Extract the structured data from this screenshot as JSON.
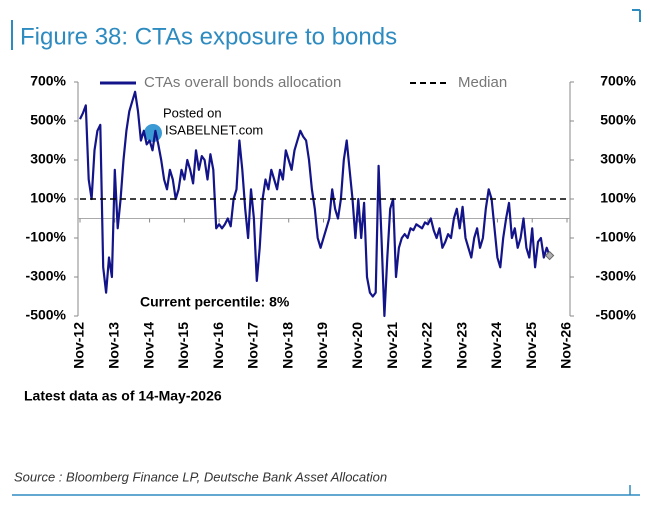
{
  "chart_data": {
    "type": "line",
    "title": "Figure 38: CTAs exposure to bonds",
    "annotations": {
      "percentile": "Current percentile: 8%",
      "latest": "Latest data as of 14-May-2026",
      "source": "Source : Bloomberg Finance LP, Deutsche Bank Asset Allocation",
      "watermark_top": "Posted on",
      "watermark_bottom": "ISABELNET.com"
    },
    "x": [
      "Nov-12",
      "Dec-12",
      "Jan-13",
      "Feb-13",
      "Mar-13",
      "Apr-13",
      "May-13",
      "Jun-13",
      "Jul-13",
      "Aug-13",
      "Sep-13",
      "Oct-13",
      "Nov-13",
      "Dec-13",
      "Jan-14",
      "Feb-14",
      "Mar-14",
      "Apr-14",
      "May-14",
      "Jun-14",
      "Jul-14",
      "Aug-14",
      "Sep-14",
      "Oct-14",
      "Nov-14",
      "Dec-14",
      "Jan-15",
      "Feb-15",
      "Mar-15",
      "Apr-15",
      "May-15",
      "Jun-15",
      "Jul-15",
      "Aug-15",
      "Sep-15",
      "Oct-15",
      "Nov-15",
      "Dec-15",
      "Jan-16",
      "Feb-16",
      "Mar-16",
      "Apr-16",
      "May-16",
      "Jun-16",
      "Jul-16",
      "Aug-16",
      "Sep-16",
      "Oct-16",
      "Nov-16",
      "Dec-16",
      "Jan-17",
      "Feb-17",
      "Mar-17",
      "Apr-17",
      "May-17",
      "Jun-17",
      "Jul-17",
      "Aug-17",
      "Sep-17",
      "Oct-17",
      "Nov-17",
      "Dec-17",
      "Jan-18",
      "Feb-18",
      "Mar-18",
      "Apr-18",
      "May-18",
      "Jun-18",
      "Jul-18",
      "Aug-18",
      "Sep-18",
      "Oct-18",
      "Nov-18",
      "Dec-18",
      "Jan-19",
      "Feb-19",
      "Mar-19",
      "Apr-19",
      "May-19",
      "Jun-19",
      "Jul-19",
      "Aug-19",
      "Sep-19",
      "Oct-19",
      "Nov-19",
      "Dec-19",
      "Jan-20",
      "Feb-20",
      "Mar-20",
      "Apr-20",
      "May-20",
      "Jun-20",
      "Jul-20",
      "Aug-20",
      "Sep-20",
      "Oct-20",
      "Nov-20",
      "Dec-20",
      "Jan-21",
      "Feb-21",
      "Mar-21",
      "Apr-21",
      "May-21",
      "Jun-21",
      "Jul-21",
      "Aug-21",
      "Sep-21",
      "Oct-21",
      "Nov-21",
      "Dec-21",
      "Jan-22",
      "Feb-22",
      "Mar-22",
      "Apr-22",
      "May-22",
      "Jun-22",
      "Jul-22",
      "Aug-22",
      "Sep-22",
      "Oct-22",
      "Nov-22",
      "Dec-22",
      "Jan-23",
      "Feb-23",
      "Mar-23",
      "Apr-23",
      "May-23",
      "Jun-23",
      "Jul-23",
      "Aug-23",
      "Sep-23",
      "Oct-23",
      "Nov-23",
      "Dec-23",
      "Jan-24",
      "Feb-24",
      "Mar-24",
      "Apr-24",
      "May-24",
      "Jun-24",
      "Jul-24",
      "Aug-24",
      "Sep-24",
      "Oct-24",
      "Nov-24",
      "Dec-24",
      "Jan-25",
      "Feb-25",
      "Mar-25",
      "Apr-25",
      "May-25",
      "Jun-25",
      "Jul-25",
      "Aug-25",
      "Sep-25",
      "Oct-25",
      "Nov-25",
      "Dec-25",
      "Jan-26",
      "Feb-26",
      "Mar-26",
      "Apr-26",
      "May-26",
      "Jun-26",
      "Jul-26",
      "Aug-26",
      "Sep-26",
      "Oct-26",
      "Nov-26"
    ],
    "x_label_every": 12,
    "series": [
      {
        "name": "CTAs overall bonds allocation",
        "color": "#14148a",
        "values": [
          510,
          540,
          580,
          200,
          100,
          350,
          450,
          480,
          -250,
          -380,
          -200,
          -300,
          250,
          -50,
          100,
          300,
          450,
          550,
          600,
          650,
          550,
          400,
          450,
          380,
          400,
          350,
          450,
          380,
          300,
          200,
          150,
          250,
          200,
          100,
          150,
          250,
          200,
          300,
          250,
          180,
          350,
          250,
          320,
          300,
          200,
          330,
          250,
          -50,
          -30,
          -50,
          -30,
          0,
          -40,
          100,
          150,
          400,
          250,
          50,
          -100,
          150,
          0,
          -320,
          -150,
          100,
          200,
          150,
          250,
          200,
          150,
          250,
          200,
          350,
          300,
          250,
          350,
          400,
          450,
          420,
          400,
          300,
          150,
          50,
          -100,
          -150,
          -100,
          -50,
          0,
          150,
          50,
          0,
          100,
          300,
          400,
          250,
          100,
          -100,
          100,
          -100,
          80,
          -300,
          -380,
          -400,
          -380,
          270,
          -100,
          -500,
          -200,
          50,
          100,
          -300,
          -150,
          -100,
          -80,
          -100,
          -50,
          -60,
          -30,
          -40,
          -50,
          -20,
          -30,
          0,
          -60,
          -100,
          -50,
          -150,
          -120,
          -80,
          -100,
          0,
          50,
          -50,
          60,
          -100,
          -150,
          -200,
          -100,
          -50,
          -150,
          -100,
          50,
          150,
          100,
          -50,
          -200,
          -250,
          -100,
          0,
          80,
          -100,
          -50,
          -150,
          -100,
          0,
          -150,
          -200,
          -50,
          -250,
          -120,
          -100,
          -200,
          -150,
          -190,
          null,
          null,
          null,
          null,
          null,
          null
        ]
      },
      {
        "name": "Median",
        "color": "#000000",
        "dashed": true,
        "value": 100
      }
    ],
    "last_point_marker": "diamond",
    "last_point_color": "#b0b0b0",
    "ylim": [
      -500,
      700
    ],
    "yticks": [
      {
        "value": 700,
        "label": "700%"
      },
      {
        "value": 500,
        "label": "500%"
      },
      {
        "value": 300,
        "label": "300%"
      },
      {
        "value": 100,
        "label": "100%"
      },
      {
        "value": -100,
        "label": "-100%"
      },
      {
        "value": -300,
        "label": "-300%"
      },
      {
        "value": -500,
        "label": "-500%"
      }
    ],
    "y2lim": [
      -500,
      700
    ],
    "y2ticks": [
      {
        "value": 700,
        "label": "700%"
      },
      {
        "value": 500,
        "label": "500%"
      },
      {
        "value": 300,
        "label": "300%"
      },
      {
        "value": 100,
        "label": "100%"
      },
      {
        "value": -100,
        "label": "-100%"
      },
      {
        "value": -300,
        "label": "-300%"
      },
      {
        "value": -500,
        "label": "-500%"
      }
    ],
    "zero_line": true,
    "grid": false,
    "legend": "top"
  }
}
